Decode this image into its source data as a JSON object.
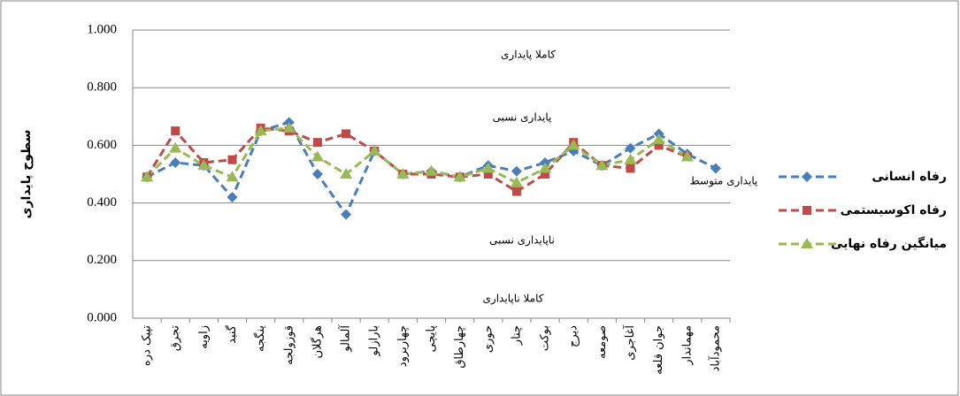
{
  "chart_data": {
    "type": "line",
    "y_label": "سطوح پایداری",
    "categories": [
      "تپیک دره",
      "تجرق",
      "زاویه",
      "گنبد",
      "ینگجه",
      "قوزولجه",
      "هرگلان",
      "آلمالو",
      "بارازلو",
      "چهاربرود",
      "پایچی",
      "چهارطاق",
      "حوری",
      "چنار",
      "بوکت",
      "دیرج",
      "صومعه",
      "آغاجری",
      "جوان قلعه",
      "مهماندار",
      "محمودآباد"
    ],
    "series": [
      {
        "name": "رفاه انسانی",
        "color": "#4a7ebb",
        "marker": "diamond",
        "values": [
          0.49,
          0.54,
          0.53,
          0.42,
          0.65,
          0.68,
          0.5,
          0.36,
          0.58,
          0.5,
          0.51,
          0.49,
          0.53,
          0.51,
          0.54,
          0.58,
          0.53,
          0.59,
          0.64,
          0.57,
          0.52
        ]
      },
      {
        "name": "رفاه اکوسیستمی",
        "color": "#be4b48",
        "marker": "square",
        "values": [
          0.49,
          0.65,
          0.54,
          0.55,
          0.66,
          0.65,
          0.61,
          0.64,
          0.58,
          0.5,
          0.5,
          0.49,
          0.5,
          0.44,
          0.5,
          0.61,
          0.53,
          0.52,
          0.6,
          0.56,
          null
        ]
      },
      {
        "name": "میانگین رفاه نهایی",
        "color": "#98b954",
        "marker": "triangle",
        "values": [
          0.49,
          0.59,
          0.53,
          0.49,
          0.65,
          0.66,
          0.56,
          0.5,
          0.58,
          0.5,
          0.51,
          0.49,
          0.52,
          0.47,
          0.52,
          0.6,
          0.53,
          0.55,
          0.62,
          0.56,
          null
        ]
      }
    ],
    "ylim": [
      0,
      1
    ],
    "yticks": [
      {
        "value": 0,
        "label": "0.000"
      },
      {
        "value": 0.2,
        "label": "0.200"
      },
      {
        "value": 0.4,
        "label": "0.400"
      },
      {
        "value": 0.6,
        "label": "0.600"
      },
      {
        "value": 0.8,
        "label": "0.800"
      },
      {
        "value": 1,
        "label": "1.000"
      }
    ],
    "grid": true,
    "annotations": [
      "کاملا پایداری",
      "پایداری نسبی",
      "پایداری متوسط",
      "ناپایداری نسبی",
      "کاملا ناپایداری"
    ],
    "legend": "right"
  }
}
